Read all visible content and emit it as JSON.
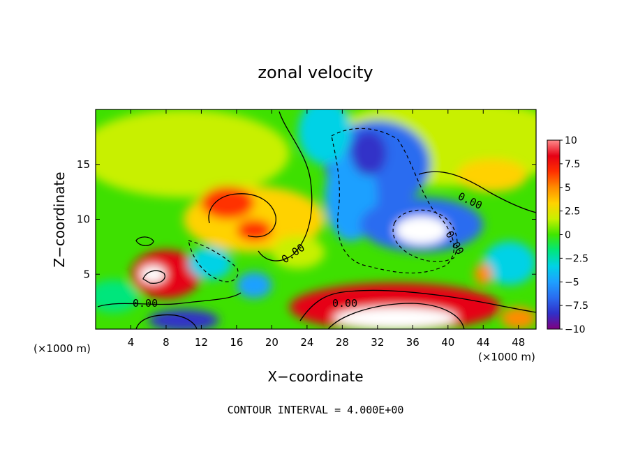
{
  "chart_data": {
    "type": "heatmap",
    "title": "zonal velocity",
    "xlabel": "X−coordinate",
    "ylabel": "Z−coordinate",
    "x_unit_left": "(×1000 m)",
    "x_unit_right": "(×1000 m)",
    "footer": "CONTOUR INTERVAL = 4.000E+00",
    "xlim": [
      0,
      50
    ],
    "ylim": [
      0,
      20
    ],
    "x_ticks": [
      4,
      8,
      12,
      16,
      20,
      24,
      28,
      32,
      36,
      40,
      44,
      48
    ],
    "y_ticks": [
      5,
      10,
      15
    ],
    "colorbar": {
      "range": [
        -10,
        10
      ],
      "labels": [
        "10",
        "7.5",
        "5",
        "2.5",
        "0",
        "−2.5",
        "−5",
        "−7.5",
        "−10"
      ]
    },
    "contour_labels": [
      "0.00",
      "0.00",
      "0.00",
      "0.00",
      "0.00"
    ],
    "colors": {
      "scale": [
        "#800080",
        "#3030c8",
        "#2a6cf0",
        "#1ea0ff",
        "#00d2e6",
        "#00e67c",
        "#40e600",
        "#c8f000",
        "#ffd200",
        "#ff8c00",
        "#ff3000",
        "#e60014",
        "#ff8c8c"
      ],
      "background": "#3ee000",
      "contour": "#000000"
    }
  }
}
